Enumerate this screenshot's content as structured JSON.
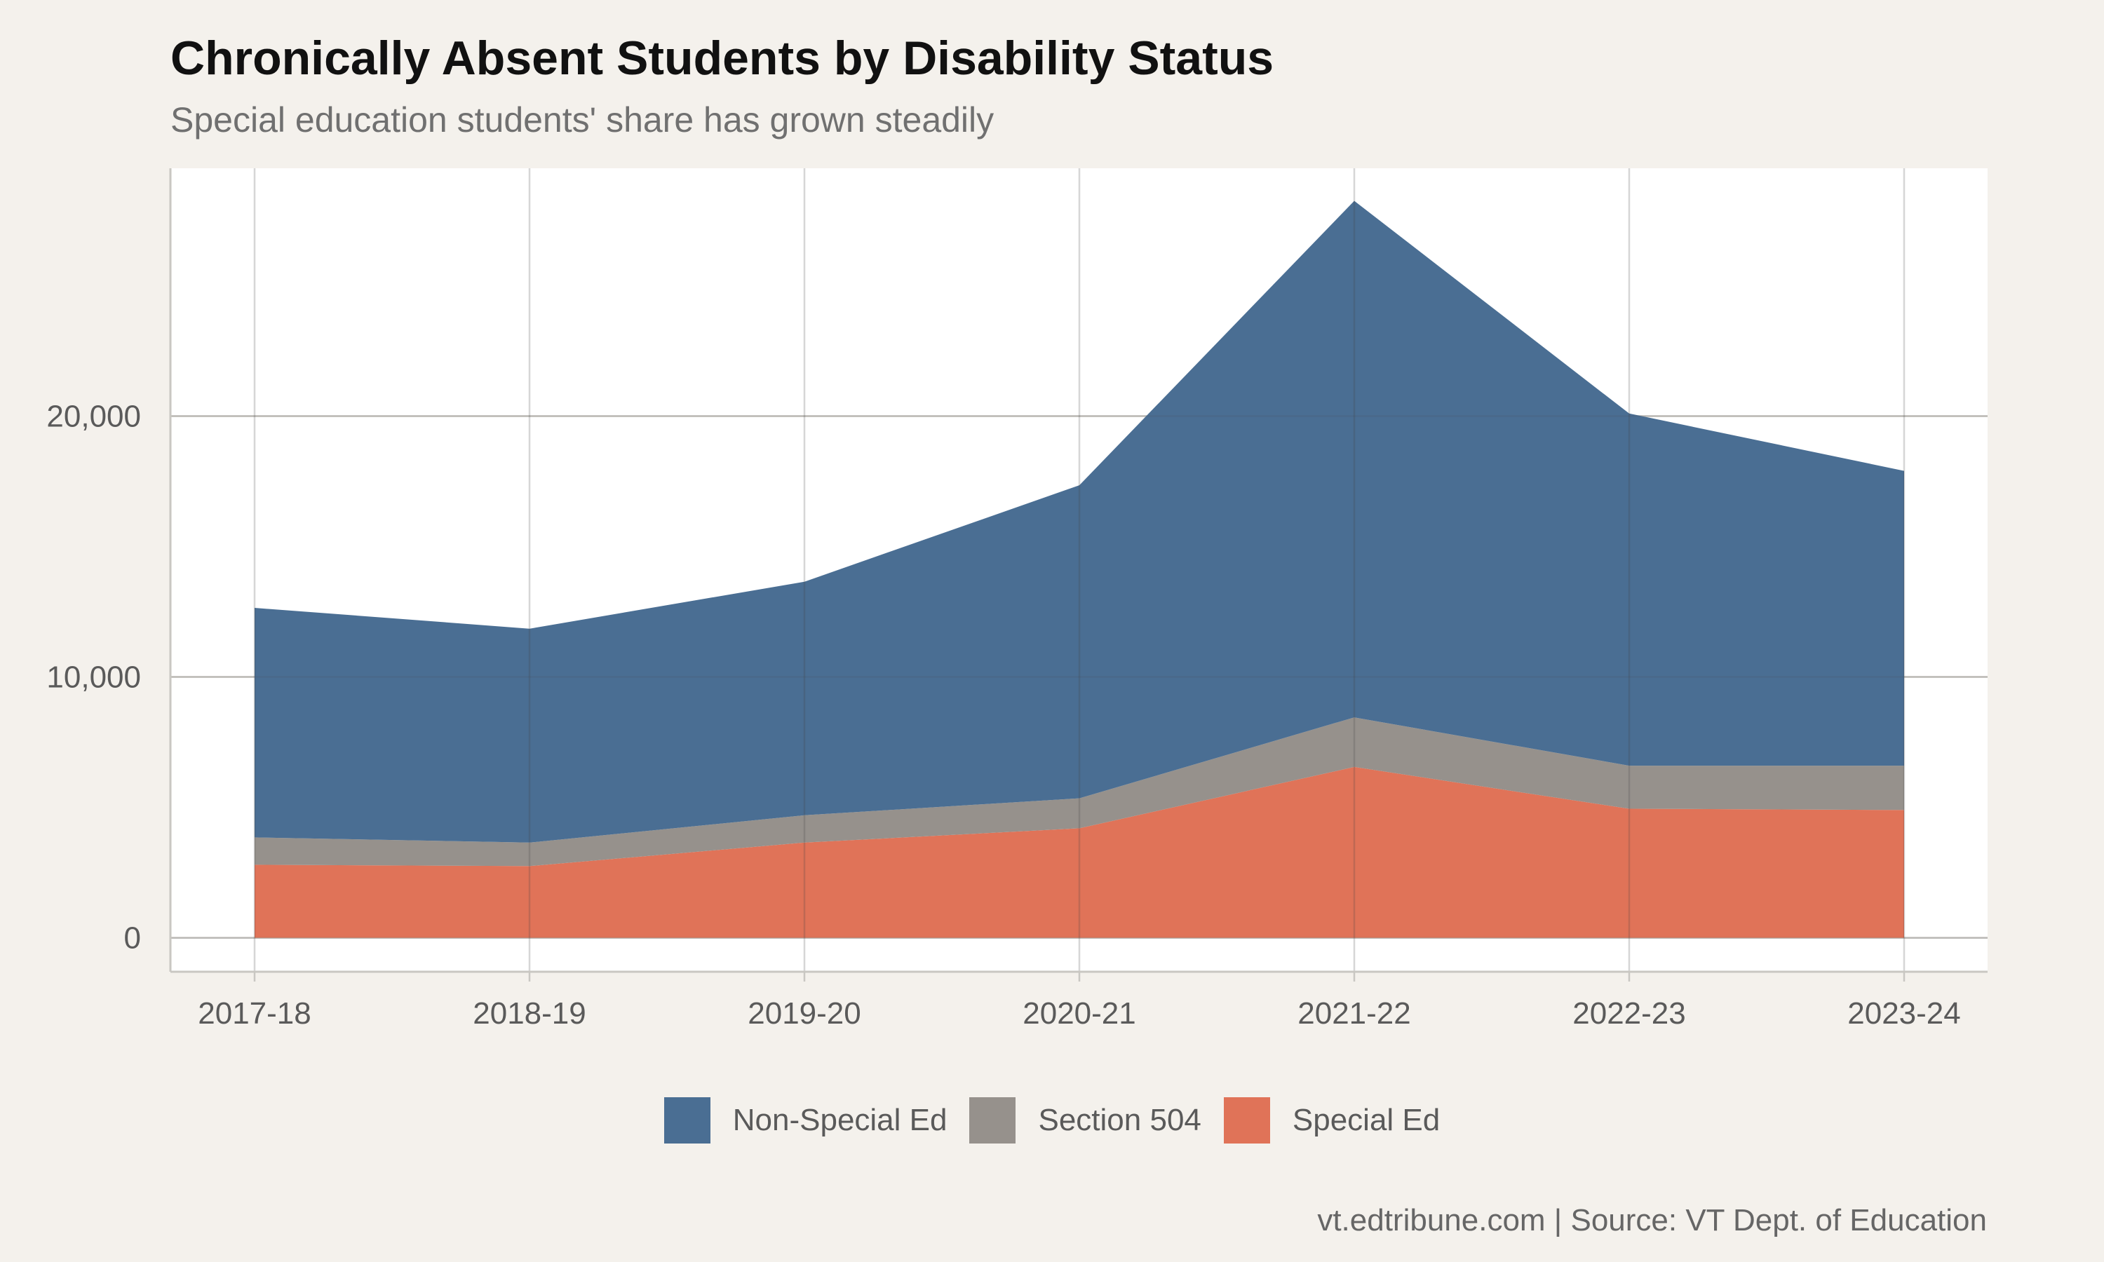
{
  "chart_data": {
    "type": "area",
    "stacked": true,
    "title": "Chronically Absent Students by Disability Status",
    "subtitle": "Special education students' share has grown steadily",
    "caption": "vt.edtribune.com | Source: VT Dept. of Education",
    "xlabel": "",
    "ylabel": "",
    "categories": [
      "2017-18",
      "2018-19",
      "2019-20",
      "2020-21",
      "2021-22",
      "2022-23",
      "2023-24"
    ],
    "ylim": [
      -1300,
      29500
    ],
    "y_ticks": [
      {
        "value": 0,
        "label": "0"
      },
      {
        "value": 10000,
        "label": "10,000"
      },
      {
        "value": 20000,
        "label": "20,000"
      }
    ],
    "grid": true,
    "legend_position": "bottom",
    "series": [
      {
        "name": "Special Ed",
        "color": "#e07358",
        "values": [
          2800,
          2750,
          3650,
          4200,
          6550,
          4950,
          4900
        ]
      },
      {
        "name": "Section 504",
        "color": "#96918c",
        "values": [
          1050,
          900,
          1050,
          1150,
          1900,
          1650,
          1700
        ]
      },
      {
        "name": "Non-Special Ed",
        "color": "#4a6e93",
        "values": [
          8800,
          8200,
          8950,
          12000,
          19800,
          13500,
          11300
        ]
      }
    ],
    "legend": [
      "Non-Special Ed",
      "Section 504",
      "Special Ed"
    ]
  }
}
